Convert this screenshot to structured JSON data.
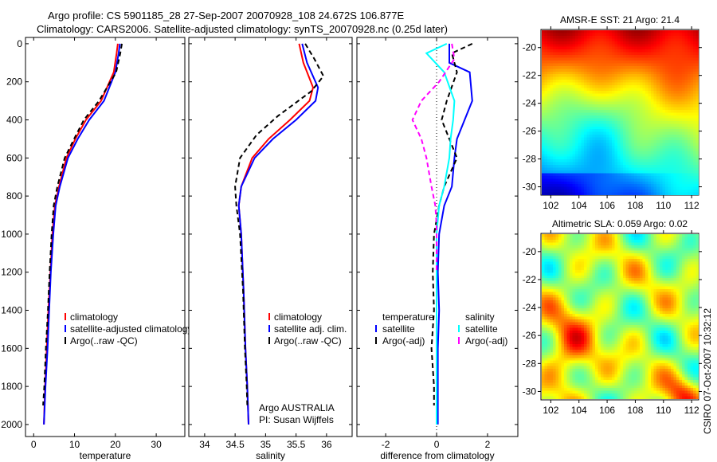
{
  "figure": {
    "title_line1": "Argo profile: CS 5901185_28 27-Sep-2007 20070928_108 24.672S 106.877E",
    "title_line2": "Climatology: CARS2006. Satellite-adjusted climatology: synTS_20070928.nc (0.25d later)",
    "stamp": "CSIRO 07-Oct-2007 10:32:12",
    "credit_line1": "Argo AUSTRALIA",
    "credit_line2": "PI: Susan Wijffels"
  },
  "chart_data": [
    {
      "type": "line",
      "xlabel": "temperature",
      "ylabel": "",
      "xlim": [
        -2,
        37
      ],
      "ylim": [
        2063,
        -33
      ],
      "xticks": [
        0,
        10,
        20,
        30
      ],
      "yticks": [
        0,
        200,
        400,
        600,
        800,
        1000,
        1200,
        1400,
        1600,
        1800,
        2000
      ],
      "legend": [
        "climatology",
        "satellite-adjusted climatology",
        "Argo(..raw -QC)"
      ],
      "series": [
        {
          "name": "climatology",
          "color": "#ff0000",
          "dash": false,
          "x": [
            20.6,
            20.3,
            19.6,
            16.5,
            12.8,
            10.2,
            8.0,
            6.2,
            5.2,
            4.6,
            4.1,
            3.6,
            3.2,
            2.8,
            2.5
          ],
          "y": [
            0,
            50,
            150,
            300,
            400,
            500,
            600,
            750,
            850,
            1000,
            1200,
            1400,
            1600,
            1800,
            2000
          ]
        },
        {
          "name": "satellite-adjusted climatology",
          "color": "#0000ff",
          "dash": false,
          "x": [
            21.1,
            20.8,
            20.0,
            17.2,
            13.6,
            10.8,
            8.4,
            6.4,
            5.4,
            4.8,
            4.2,
            3.8,
            3.4,
            2.9,
            2.5
          ],
          "y": [
            0,
            50,
            150,
            300,
            400,
            500,
            600,
            750,
            850,
            1000,
            1200,
            1400,
            1600,
            1800,
            2000
          ]
        },
        {
          "name": "Argo(..raw -QC)",
          "color": "#000000",
          "dash": true,
          "x": [
            21.6,
            21.2,
            20.2,
            16.0,
            12.3,
            9.9,
            7.6,
            5.8,
            4.9,
            4.4,
            3.9,
            3.5,
            3.0,
            2.6,
            2.3
          ],
          "y": [
            0,
            50,
            150,
            300,
            400,
            500,
            600,
            750,
            850,
            1000,
            1200,
            1400,
            1600,
            1800,
            1900
          ]
        }
      ]
    },
    {
      "type": "line",
      "xlabel": "salinity",
      "ylabel": "",
      "xlim": [
        33.74,
        36.42
      ],
      "ylim": [
        2063,
        -33
      ],
      "xticks": [
        34,
        34.5,
        35,
        35.5,
        36
      ],
      "xticklabels": [
        "34",
        "34.5",
        "35",
        "35.5",
        "36"
      ],
      "yticks": [
        0,
        200,
        400,
        600,
        800,
        1000,
        1200,
        1400,
        1600,
        1800,
        2000
      ],
      "legend": [
        "climatology",
        "satellite adj. clim.",
        "Argo(..raw -QC)"
      ],
      "series": [
        {
          "name": "climatology",
          "color": "#ff0000",
          "dash": false,
          "x": [
            35.55,
            35.62,
            35.78,
            35.72,
            35.4,
            35.05,
            34.78,
            34.6,
            34.56,
            34.6,
            34.64,
            34.67,
            34.7,
            34.72
          ],
          "y": [
            0,
            100,
            230,
            300,
            400,
            500,
            600,
            750,
            850,
            1000,
            1300,
            1600,
            1800,
            2000
          ]
        },
        {
          "name": "satellite adj. clim.",
          "color": "#0000ff",
          "dash": false,
          "x": [
            35.6,
            35.68,
            35.86,
            35.82,
            35.5,
            35.12,
            34.82,
            34.6,
            34.56,
            34.6,
            34.64,
            34.67,
            34.7,
            34.72
          ],
          "y": [
            0,
            100,
            230,
            300,
            400,
            500,
            600,
            750,
            850,
            1000,
            1300,
            1600,
            1800,
            2000
          ]
        },
        {
          "name": "Argo(..raw -QC)",
          "color": "#000000",
          "dash": true,
          "x": [
            35.65,
            35.8,
            35.95,
            35.75,
            35.2,
            34.85,
            34.58,
            34.5,
            34.52,
            34.58,
            34.63,
            34.66,
            34.69,
            34.7
          ],
          "y": [
            0,
            80,
            170,
            250,
            380,
            480,
            600,
            750,
            850,
            1000,
            1300,
            1600,
            1800,
            1900
          ]
        }
      ]
    },
    {
      "type": "line",
      "xlabel": "difference from climatology",
      "ylabel": "",
      "xlim": [
        -3.13,
        3.19
      ],
      "ylim": [
        2063,
        -33
      ],
      "xticks": [
        -2,
        0,
        2
      ],
      "yticks": [
        0,
        200,
        400,
        600,
        800,
        1000,
        1200,
        1400,
        1600,
        1800,
        2000
      ],
      "legend_columns": [
        {
          "heading": "temperature",
          "entries": [
            "satellite",
            "Argo(-adj)"
          ]
        },
        {
          "heading": "salinity",
          "entries": [
            "satellite",
            "Argo(-adj)"
          ]
        }
      ],
      "series": [
        {
          "name": "temperature satellite",
          "color": "#0000ff",
          "dash": false,
          "x": [
            0.5,
            0.5,
            1.3,
            1.4,
            1.1,
            0.8,
            0.7,
            0.6,
            0.3,
            0.1,
            0.05,
            0.1,
            0.05,
            0.05,
            0.05
          ],
          "y": [
            0,
            100,
            150,
            300,
            400,
            500,
            600,
            750,
            850,
            1000,
            1200,
            1400,
            1600,
            1800,
            2000
          ]
        },
        {
          "name": "temperature Argo(-adj)",
          "color": "#000000",
          "dash": true,
          "x": [
            1.4,
            0.6,
            0.8,
            0.4,
            0.2,
            0.5,
            0.8,
            0.3,
            0.1,
            -0.1,
            -0.15,
            -0.1,
            -0.2,
            -0.1,
            -0.1
          ],
          "y": [
            0,
            50,
            150,
            300,
            400,
            500,
            600,
            750,
            850,
            1000,
            1200,
            1400,
            1600,
            1800,
            1900
          ]
        },
        {
          "name": "salinity satellite",
          "color": "#00ffff",
          "dash": false,
          "x": [
            0.4,
            -0.4,
            0.3,
            0.7,
            0.65,
            0.55,
            0.5,
            0.3,
            0.1,
            0.0,
            0.0,
            0.0,
            0.0,
            0.0,
            0.0
          ],
          "y": [
            0,
            50,
            150,
            300,
            400,
            500,
            600,
            750,
            850,
            1000,
            1200,
            1400,
            1600,
            1800,
            2000
          ]
        },
        {
          "name": "salinity Argo(-adj)",
          "color": "#ff00ff",
          "dash": true,
          "x": [
            0.6,
            0.7,
            0.1,
            -0.6,
            -0.95,
            -0.6,
            -0.4,
            -0.2,
            -0.05,
            0.0,
            0.0,
            0.0
          ],
          "y": [
            0,
            80,
            200,
            300,
            400,
            500,
            600,
            750,
            850,
            950,
            1100,
            1200
          ]
        }
      ]
    },
    {
      "type": "heatmap",
      "title": "AMSR-E SST: 21 Argo: 21.4",
      "xlim": [
        101.3,
        112.5
      ],
      "ylim": [
        -30.6,
        -18.7
      ],
      "xticks": [
        102,
        104,
        106,
        108,
        110,
        112
      ],
      "yticks": [
        -20,
        -22,
        -24,
        -26,
        -28,
        -30
      ],
      "marker": {
        "lon": 106.877,
        "lat": -24.672
      },
      "colormap": "jet"
    },
    {
      "type": "heatmap",
      "title": "Altimetric SLA: 0.059 Argo: 0.02",
      "xlim": [
        101.3,
        112.5
      ],
      "ylim": [
        -30.6,
        -18.7
      ],
      "xticks": [
        102,
        104,
        106,
        108,
        110,
        112
      ],
      "yticks": [
        -20,
        -22,
        -24,
        -26,
        -28,
        -30
      ],
      "marker": {
        "lon": 106.877,
        "lat": -24.672
      },
      "colormap": "jet"
    }
  ]
}
